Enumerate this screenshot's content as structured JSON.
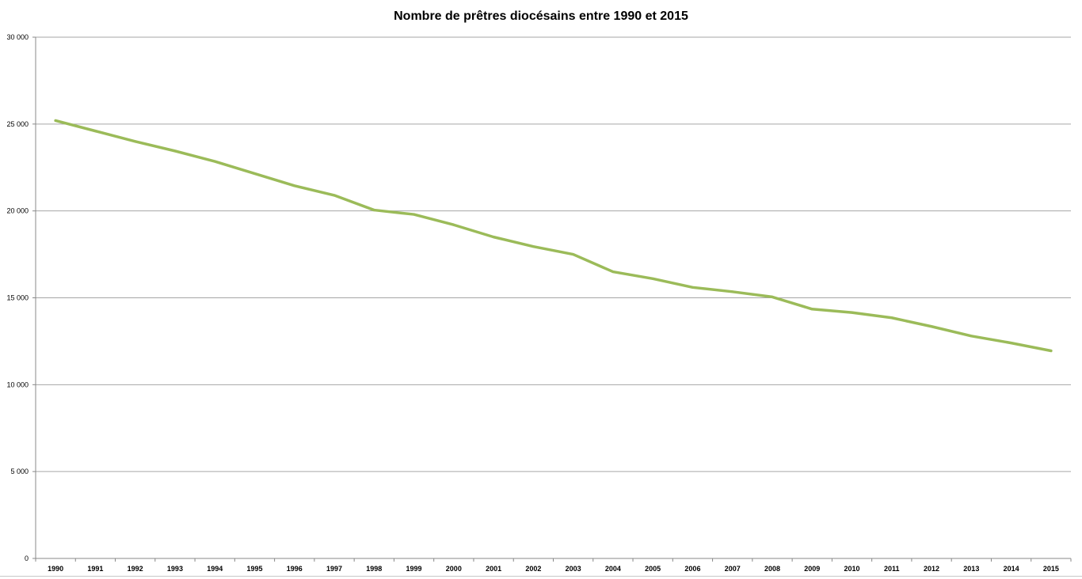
{
  "chart_data": {
    "type": "line",
    "title": "Nombre de prêtres diocésains entre 1990 et 2015",
    "xlabel": "",
    "ylabel": "",
    "ylim": [
      0,
      30000
    ],
    "grid": "horizontal",
    "legend": "none",
    "line_color": "#9bbb59",
    "y_ticks": [
      "0",
      "5 000",
      "10 000",
      "15 000",
      "20 000",
      "25 000",
      "30 000"
    ],
    "y_tick_values": [
      0,
      5000,
      10000,
      15000,
      20000,
      25000,
      30000
    ],
    "categories": [
      "1990",
      "1991",
      "1992",
      "1993",
      "1994",
      "1995",
      "1996",
      "1997",
      "1998",
      "1999",
      "2000",
      "2001",
      "2002",
      "2003",
      "2004",
      "2005",
      "2006",
      "2007",
      "2008",
      "2009",
      "2010",
      "2011",
      "2012",
      "2013",
      "2014",
      "2015"
    ],
    "series": [
      {
        "values": [
          25200,
          24600,
          24000,
          23450,
          22850,
          22150,
          21450,
          20900,
          20050,
          19800,
          19200,
          18500,
          17950,
          17500,
          16500,
          16100,
          15600,
          15350,
          15050,
          14350,
          14150,
          13850,
          13350,
          12800,
          12400,
          11950
        ]
      }
    ]
  }
}
